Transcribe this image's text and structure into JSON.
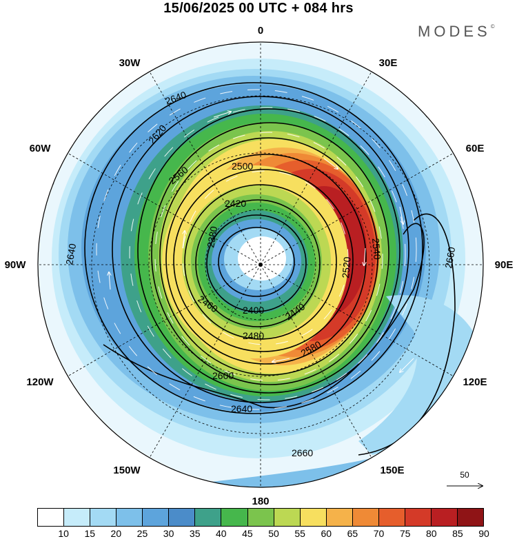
{
  "title": "15/06/2025  00 UTC  + 084 hrs",
  "brand": "MODES",
  "brand_mark": "©",
  "longitude_labels": [
    "0",
    "30E",
    "60E",
    "90E",
    "120E",
    "150E",
    "180",
    "150W",
    "120W",
    "90W",
    "60W",
    "30W"
  ],
  "contours": [
    {
      "label": "2380"
    },
    {
      "label": "2400"
    },
    {
      "label": "2420"
    },
    {
      "label": "2440"
    },
    {
      "label": "2460"
    },
    {
      "label": "2480"
    },
    {
      "label": "2500"
    },
    {
      "label": "2520"
    },
    {
      "label": "2540"
    },
    {
      "label": "2560"
    },
    {
      "label": "2580"
    },
    {
      "label": "2600"
    },
    {
      "label": "2620"
    },
    {
      "label": "2640"
    },
    {
      "label": "2660"
    }
  ],
  "reference_vector": {
    "label": "50"
  },
  "legend": {
    "ticks": [
      "10",
      "15",
      "20",
      "25",
      "30",
      "35",
      "40",
      "45",
      "50",
      "55",
      "60",
      "65",
      "70",
      "75",
      "80",
      "85",
      "90"
    ],
    "colors": [
      "#ffffff",
      "#c6ecfa",
      "#a3daf4",
      "#7dc0ea",
      "#5da4dc",
      "#4b8cc9",
      "#3ea18a",
      "#46b74c",
      "#7bc44d",
      "#bcd853",
      "#f7df5f",
      "#f5b24a",
      "#ef8a36",
      "#e65e2c",
      "#d43a28",
      "#b91f22",
      "#8f1416"
    ]
  }
}
